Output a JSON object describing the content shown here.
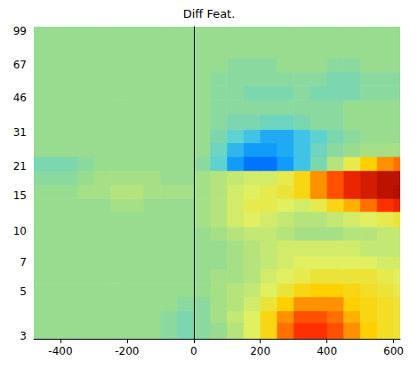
{
  "chart_data": {
    "type": "heatmap",
    "title": "Diff Feat.",
    "log": "y",
    "xlim": [
      -480,
      620
    ],
    "ylim": [
      2.9,
      104
    ],
    "xticks": [
      -400,
      -200,
      0,
      200,
      400,
      600
    ],
    "yticks": [
      3,
      5,
      7,
      10,
      15,
      21,
      31,
      46,
      67,
      99
    ],
    "vline_x": 0,
    "zlim": [
      -1,
      1
    ],
    "x_edges": [
      -480,
      -400,
      -350,
      -300,
      -250,
      -200,
      -150,
      -100,
      -50,
      0,
      50,
      100,
      150,
      200,
      250,
      300,
      350,
      400,
      450,
      500,
      550,
      600,
      620
    ],
    "y_edges": [
      2.9,
      3.5,
      4,
      4.7,
      5.5,
      6.5,
      7.5,
      9,
      10.5,
      12.5,
      14.5,
      17,
      20,
      23.5,
      27.5,
      32,
      38,
      45,
      53,
      62,
      73,
      85,
      104
    ],
    "z": [
      [
        0,
        0,
        0,
        0,
        0,
        0,
        0,
        -0.05,
        -0.1,
        -0.05,
        0,
        0.1,
        0.25,
        0.45,
        0.65,
        0.75,
        0.75,
        0.7,
        0.6,
        0.5,
        0.4,
        0.35
      ],
      [
        0,
        0,
        0,
        0,
        0,
        0,
        0,
        -0.05,
        -0.1,
        -0.05,
        0.05,
        0.15,
        0.25,
        0.45,
        0.6,
        0.7,
        0.7,
        0.65,
        0.55,
        0.45,
        0.4,
        0.35
      ],
      [
        0,
        0,
        0,
        0,
        0,
        0,
        0,
        0,
        -0.05,
        -0.05,
        0.05,
        0.1,
        0.2,
        0.35,
        0.5,
        0.6,
        0.6,
        0.6,
        0.5,
        0.45,
        0.4,
        0.35
      ],
      [
        0,
        0,
        0,
        0,
        0,
        0,
        0,
        0,
        0,
        0,
        0.05,
        0.1,
        0.15,
        0.25,
        0.35,
        0.45,
        0.5,
        0.5,
        0.45,
        0.4,
        0.35,
        0.3
      ],
      [
        0,
        0,
        0,
        0,
        0,
        0,
        0,
        0,
        0,
        0,
        0.05,
        0.05,
        0.1,
        0.2,
        0.25,
        0.3,
        0.35,
        0.35,
        0.35,
        0.35,
        0.3,
        0.25
      ],
      [
        0,
        0,
        0,
        0,
        0,
        0,
        0,
        0,
        0,
        0,
        0,
        0.05,
        0.1,
        0.15,
        0.2,
        0.25,
        0.25,
        0.25,
        0.25,
        0.25,
        0.2,
        0.2
      ],
      [
        0,
        0,
        0,
        0,
        0,
        0,
        0,
        0,
        0,
        0,
        0,
        0.05,
        0.1,
        0.15,
        0.2,
        0.2,
        0.2,
        0.2,
        0.2,
        0.15,
        0.15,
        0.15
      ],
      [
        0,
        0,
        0,
        0,
        0,
        0,
        0,
        0,
        0,
        0,
        0.05,
        0.1,
        0.15,
        0.15,
        0.1,
        0.05,
        0.05,
        0.05,
        0.1,
        0.1,
        0.15,
        0.15
      ],
      [
        0,
        0,
        0,
        0,
        0,
        0,
        0,
        0,
        0,
        0.05,
        0.1,
        0.2,
        0.25,
        0.2,
        0.15,
        0.1,
        0.1,
        0.15,
        0.2,
        0.25,
        0.3,
        0.35
      ],
      [
        0,
        0,
        0,
        0,
        0.05,
        0.05,
        0,
        0,
        0,
        0.05,
        0.1,
        0.2,
        0.3,
        0.3,
        0.25,
        0.2,
        0.3,
        0.45,
        0.55,
        0.65,
        0.75,
        0.8
      ],
      [
        0,
        0,
        0.05,
        0.05,
        0.1,
        0.1,
        0.05,
        0.05,
        0.05,
        0.05,
        0.1,
        0.2,
        0.25,
        0.3,
        0.35,
        0.45,
        0.6,
        0.7,
        0.8,
        0.85,
        0.9,
        0.92
      ],
      [
        -0.05,
        -0.05,
        0,
        0.05,
        0.05,
        0.05,
        0.05,
        0,
        0,
        0.05,
        0.1,
        0.15,
        0.2,
        0.2,
        0.3,
        0.45,
        0.6,
        0.7,
        0.8,
        0.85,
        0.9,
        0.9
      ],
      [
        -0.1,
        -0.1,
        -0.05,
        0,
        0,
        0,
        0,
        0,
        0,
        -0.05,
        -0.2,
        -0.45,
        -0.55,
        -0.55,
        -0.45,
        -0.3,
        -0.1,
        0.1,
        0.3,
        0.5,
        0.6,
        0.65
      ],
      [
        0,
        0,
        0,
        0,
        0,
        0,
        0,
        0,
        0,
        0,
        -0.15,
        -0.35,
        -0.45,
        -0.45,
        -0.4,
        -0.3,
        -0.15,
        -0.05,
        0,
        0.05,
        0.05,
        0.05
      ],
      [
        0,
        0,
        0,
        0,
        0,
        0,
        0,
        0,
        0,
        0,
        -0.1,
        -0.2,
        -0.3,
        -0.4,
        -0.4,
        -0.3,
        -0.2,
        -0.1,
        -0.05,
        0,
        0,
        0
      ],
      [
        0,
        0,
        0,
        0,
        0,
        0,
        0,
        0,
        0,
        0,
        -0.05,
        -0.1,
        -0.1,
        -0.15,
        -0.15,
        -0.1,
        -0.05,
        -0.05,
        0,
        0,
        0,
        0
      ],
      [
        0,
        0,
        0,
        0,
        0,
        0,
        0,
        0,
        0,
        0,
        -0.05,
        -0.05,
        -0.05,
        -0.05,
        -0.05,
        -0.05,
        -0.05,
        -0.05,
        0,
        0,
        0,
        0
      ],
      [
        0,
        0,
        0,
        0,
        0,
        0,
        0,
        0,
        0,
        0,
        -0.05,
        -0.05,
        -0.1,
        -0.1,
        -0.1,
        -0.05,
        -0.1,
        -0.1,
        -0.1,
        -0.05,
        -0.05,
        -0.05
      ],
      [
        0,
        0,
        0,
        0,
        0,
        0,
        0,
        0,
        0,
        0,
        -0.05,
        -0.05,
        -0.05,
        -0.05,
        -0.05,
        -0.05,
        -0.05,
        -0.1,
        -0.1,
        -0.05,
        -0.05,
        -0.05
      ],
      [
        0,
        0,
        0,
        0,
        0,
        0,
        0,
        0,
        0,
        0,
        0,
        -0.05,
        -0.05,
        -0.05,
        0,
        0,
        0,
        -0.05,
        -0.05,
        0,
        0,
        0
      ],
      [
        0,
        0,
        0,
        0,
        0,
        0,
        0,
        0,
        0,
        0,
        0,
        0,
        0,
        0,
        0,
        0,
        0,
        0,
        0,
        0,
        0,
        0
      ],
      [
        0,
        0,
        0,
        0,
        0,
        0,
        0,
        0,
        0,
        0,
        0,
        0,
        0,
        0,
        0,
        0,
        0,
        0,
        0,
        0,
        0,
        0
      ]
    ]
  }
}
